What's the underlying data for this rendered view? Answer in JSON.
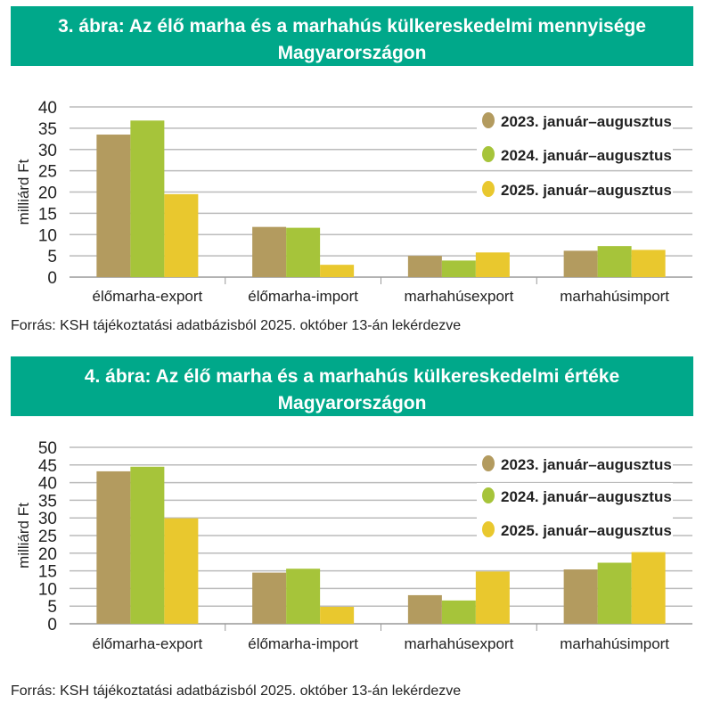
{
  "chart_data": [
    {
      "type": "bar",
      "title": "3. ábra: Az élő marha és a marhahús külkereskedelmi mennyisége Magyarországon",
      "ylabel": "milliárd Ft",
      "ylim": [
        0,
        40
      ],
      "yticks": [
        0,
        5,
        10,
        15,
        20,
        25,
        30,
        35,
        40
      ],
      "categories": [
        "élőmarha-export",
        "élőmarha-import",
        "marhahúsexport",
        "marhahúsimport"
      ],
      "series": [
        {
          "name": "2023. január–augusztus",
          "color": "#b39b5f",
          "values": [
            33.5,
            11.8,
            5.0,
            6.2
          ]
        },
        {
          "name": "2024. január–augusztus",
          "color": "#a6c43a",
          "values": [
            36.8,
            11.6,
            3.9,
            7.3
          ]
        },
        {
          "name": "2025. január–augusztus",
          "color": "#e9c82e",
          "values": [
            19.5,
            2.9,
            5.8,
            6.4
          ]
        }
      ],
      "legend": "top-right",
      "grid": true,
      "source": "Forrás: KSH tájékoztatási adatbázisból 2025. október 13-án lekérdezve"
    },
    {
      "type": "bar",
      "title": "4. ábra: Az élő marha és a marhahús külkereskedelmi értéke Magyarországon",
      "ylabel": "milliárd Ft",
      "ylim": [
        0,
        50
      ],
      "yticks": [
        0,
        5,
        10,
        15,
        20,
        25,
        30,
        35,
        40,
        45,
        50
      ],
      "categories": [
        "élőmarha-export",
        "élőmarha-import",
        "marhahúsexport",
        "marhahúsimport"
      ],
      "series": [
        {
          "name": "2023. január–augusztus",
          "color": "#b39b5f",
          "values": [
            43.2,
            14.5,
            8.1,
            15.4
          ]
        },
        {
          "name": "2024. január–augusztus",
          "color": "#a6c43a",
          "values": [
            44.5,
            15.6,
            6.6,
            17.3
          ]
        },
        {
          "name": "2025. január–augusztus",
          "color": "#e9c82e",
          "values": [
            29.9,
            4.8,
            14.8,
            20.3
          ]
        }
      ],
      "legend": "top-right",
      "grid": true,
      "source": "Forrás: KSH tájékoztatási adatbázisból 2025. október 13-án lekérdezve"
    }
  ]
}
